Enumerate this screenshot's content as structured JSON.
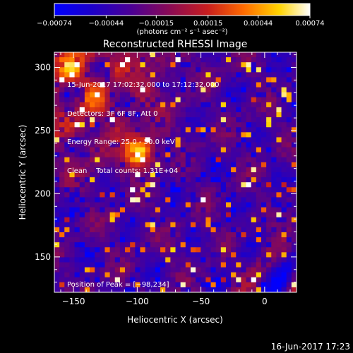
{
  "chart_data": {
    "type": "heatmap",
    "title": "Reconstructed RHESSI Image",
    "xlabel": "Heliocentric X (arcsec)",
    "ylabel": "Heliocentric Y (arcsec)",
    "xlim": [
      -165,
      25
    ],
    "ylim": [
      122,
      312
    ],
    "x_ticks": [
      -150,
      -100,
      -50,
      0
    ],
    "y_ticks": [
      150,
      200,
      250,
      300
    ],
    "x_tick_labels": [
      "−150",
      "−100",
      "−50",
      "0"
    ],
    "y_tick_labels": [
      "150",
      "200",
      "250",
      "300"
    ],
    "colorbar": {
      "range": [
        -0.00074,
        0.00074
      ],
      "tick_labels": [
        "−0.00074",
        "−0.00044",
        "−0.00015",
        "0.00015",
        "0.00044",
        "0.00074"
      ],
      "units_label": "(photons cm⁻² s⁻¹ asec⁻²)",
      "colors": [
        "#0000ff",
        "#1a00cc",
        "#4b0095",
        "#8a0a55",
        "#c81e1e",
        "#ff6a00",
        "#ffd400",
        "#ffffff"
      ]
    },
    "annotations": [
      "15-Jun-2017 17:02:32.000 to 17:12:32.000",
      "Detectors: 3F 6F 8F, Att 0",
      "Energy Range: 25.0 - 50.0 keV",
      "Clean    Total counts: 1.31E+04"
    ],
    "peak_label": "Position of Peak = [−98,234]",
    "peak_position": [
      -98,
      234
    ],
    "peak_value": 0.00074,
    "grid": false
  },
  "footer_timestamp": "16-Jun-2017 17:23"
}
